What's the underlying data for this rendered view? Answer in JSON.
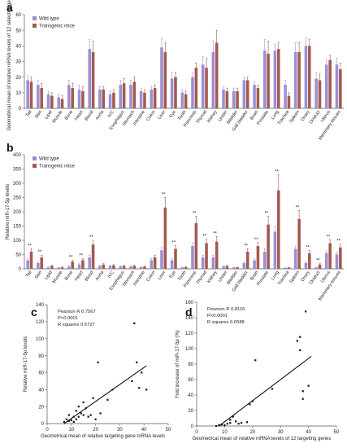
{
  "chart_data": [
    {
      "panel": "a",
      "type": "bar",
      "ylabel": "Geometrical  mean of relative mRNA levels of 12 selected genes",
      "ylim": [
        0,
        60
      ],
      "yticks": [
        0,
        10,
        20,
        30,
        40,
        50,
        60
      ],
      "grid": false,
      "legend": "top-left",
      "colors": {
        "Wild type": "#9b8fd6",
        "Transgenic mice": "#a35a4e"
      },
      "categories": [
        "Tail",
        "Skin",
        "Lipid",
        "Muscle",
        "Bone",
        "Heart",
        "Blood",
        "Aorta",
        "IVC",
        "Esophagus",
        "Stomach",
        "Intestine",
        "Colon",
        "Liver",
        "Eye",
        "Tooth",
        "Pancreas",
        "Thyroid",
        "Kidney",
        "Ureter",
        "Bladder",
        "Gall bladder",
        "Brain",
        "Prostate",
        "Lung",
        "Trachea",
        "Spleen",
        "Ovary",
        "Oviduct",
        "Uterus",
        "Mammary tissues"
      ],
      "series": [
        {
          "name": "Wild type",
          "values": [
            18,
            15,
            9,
            7,
            15,
            12,
            38,
            12,
            9,
            15,
            15,
            11,
            12,
            39,
            19,
            10,
            20,
            28,
            36,
            12,
            11,
            18,
            15,
            37,
            37,
            15,
            36,
            40,
            19,
            28,
            28
          ],
          "errors": [
            3,
            3,
            2,
            2,
            3,
            3,
            6,
            2,
            2,
            3,
            3,
            2,
            2,
            6,
            4,
            2,
            3,
            5,
            7,
            2,
            2,
            2,
            2,
            7,
            4,
            3,
            6,
            5,
            4,
            3,
            4
          ]
        },
        {
          "name": "Transgenic mice",
          "values": [
            17,
            13,
            8,
            6,
            13,
            11,
            36,
            12,
            10,
            16,
            17,
            10,
            13,
            36,
            20,
            9,
            26,
            26,
            42,
            11,
            11,
            18,
            13,
            35,
            38,
            8,
            36,
            40,
            18,
            31,
            25
          ],
          "errors": [
            3,
            3,
            2,
            2,
            3,
            3,
            7,
            2,
            2,
            3,
            3,
            2,
            2,
            6,
            3,
            2,
            3,
            6,
            8,
            2,
            2,
            2,
            2,
            8,
            4,
            2,
            6,
            4,
            4,
            3,
            4
          ]
        }
      ]
    },
    {
      "panel": "b",
      "type": "bar",
      "ylabel": "Relative miR-17-5p levels",
      "ylim": [
        0,
        400
      ],
      "yticks": [
        0,
        50,
        100,
        150,
        200,
        250,
        300,
        350,
        400
      ],
      "grid": false,
      "legend": "top-left",
      "significance_marker": "**",
      "categories": [
        "Tail",
        "Skin",
        "Lipid",
        "Muscle",
        "Bone",
        "Heart",
        "Blood",
        "Aorta",
        "IVC",
        "Esophagus",
        "Stomach",
        "Intestine",
        "Colon",
        "Liver",
        "Eye",
        "Tooth",
        "Pancreas",
        "Thyroid",
        "Kidney",
        "Ureter",
        "Bladder",
        "Gall bladder",
        "Brain",
        "Prostate",
        "Lung",
        "Trachea",
        "Spleen",
        "Ovary",
        "Oviduct",
        "Uterus",
        "Mammary tissues"
      ],
      "significant": [
        true,
        true,
        false,
        false,
        true,
        true,
        true,
        false,
        false,
        false,
        false,
        false,
        false,
        true,
        true,
        false,
        true,
        true,
        true,
        false,
        false,
        true,
        true,
        true,
        true,
        false,
        true,
        true,
        true,
        true,
        true
      ],
      "series": [
        {
          "name": "Wild type",
          "values": [
            30,
            20,
            5,
            4,
            8,
            15,
            40,
            10,
            10,
            8,
            8,
            6,
            30,
            65,
            30,
            5,
            80,
            40,
            40,
            8,
            5,
            20,
            30,
            60,
            130,
            3,
            70,
            20,
            5,
            55,
            50
          ],
          "errors": [
            5,
            5,
            2,
            1,
            2,
            3,
            8,
            2,
            2,
            2,
            2,
            1,
            6,
            10,
            5,
            1,
            10,
            8,
            8,
            2,
            1,
            4,
            5,
            10,
            20,
            1,
            10,
            4,
            1,
            8,
            8
          ]
        },
        {
          "name": "Transgenic mice",
          "values": [
            60,
            40,
            10,
            5,
            25,
            30,
            85,
            15,
            12,
            10,
            10,
            8,
            40,
            215,
            70,
            6,
            160,
            90,
            95,
            10,
            5,
            60,
            80,
            155,
            275,
            4,
            175,
            55,
            15,
            90,
            75
          ],
          "errors": [
            10,
            8,
            3,
            2,
            5,
            6,
            15,
            3,
            3,
            2,
            2,
            2,
            8,
            35,
            12,
            1,
            25,
            15,
            18,
            2,
            1,
            10,
            12,
            30,
            55,
            1,
            30,
            10,
            3,
            12,
            12
          ]
        }
      ]
    },
    {
      "panel": "c",
      "type": "scatter",
      "xlabel": "Geometrical mean of relative targeting gene mRNA levels",
      "ylabel": "Relative miR-17-5p levels",
      "xlim": [
        0,
        50
      ],
      "ylim": [
        0,
        140
      ],
      "xticks": [
        0,
        10,
        20,
        30,
        40,
        50
      ],
      "yticks": [
        0,
        20,
        40,
        60,
        80,
        100,
        120,
        140
      ],
      "annotations": [
        "Pearson R 0.7567",
        "P<0.0001",
        "R squares 0.5727"
      ],
      "fit_line": [
        [
          7,
          0
        ],
        [
          41,
          68
        ]
      ],
      "points": [
        [
          7,
          2
        ],
        [
          8,
          5
        ],
        [
          9,
          3
        ],
        [
          9,
          10
        ],
        [
          10,
          4
        ],
        [
          11,
          2
        ],
        [
          11,
          8
        ],
        [
          12,
          15
        ],
        [
          12,
          5
        ],
        [
          13,
          20
        ],
        [
          13,
          8
        ],
        [
          14,
          12
        ],
        [
          15,
          10
        ],
        [
          15,
          25
        ],
        [
          16,
          18
        ],
        [
          17,
          8
        ],
        [
          18,
          10
        ],
        [
          19,
          30
        ],
        [
          20,
          5
        ],
        [
          21,
          72
        ],
        [
          22,
          12
        ],
        [
          25,
          28
        ],
        [
          27,
          40
        ],
        [
          35,
          50
        ],
        [
          36,
          118
        ],
        [
          37,
          72
        ],
        [
          38,
          42
        ],
        [
          39,
          60
        ],
        [
          41,
          40
        ]
      ]
    },
    {
      "panel": "d",
      "type": "scatter",
      "xlabel": "Geometrical  mean of relative mRNA levels of 12 targeting genes",
      "ylabel": "Fold increase of miR-17-5p (%)",
      "xlim": [
        0,
        50
      ],
      "ylim": [
        0,
        160
      ],
      "xticks": [
        0,
        10,
        20,
        30,
        40,
        50
      ],
      "yticks": [
        0,
        20,
        40,
        60,
        80,
        100,
        120,
        140,
        160
      ],
      "annotations": [
        "Pearson R 0.8116",
        "P<0.0001",
        "R squares 0.6588"
      ],
      "fit_line": [
        [
          8,
          0
        ],
        [
          41,
          90
        ]
      ],
      "points": [
        [
          7,
          0
        ],
        [
          8,
          1
        ],
        [
          9,
          2
        ],
        [
          10,
          1
        ],
        [
          11,
          3
        ],
        [
          12,
          4
        ],
        [
          12,
          8
        ],
        [
          13,
          12
        ],
        [
          14,
          6
        ],
        [
          15,
          3
        ],
        [
          16,
          4
        ],
        [
          18,
          5
        ],
        [
          19,
          28
        ],
        [
          20,
          32
        ],
        [
          21,
          85
        ],
        [
          27,
          48
        ],
        [
          36,
          110
        ],
        [
          37,
          98
        ],
        [
          37,
          115
        ],
        [
          38,
          45
        ],
        [
          38,
          35
        ],
        [
          39,
          148
        ],
        [
          40,
          52
        ]
      ]
    }
  ],
  "panel_labels": [
    "a",
    "b",
    "c",
    "d"
  ],
  "legend_labels": [
    "Wild type",
    "Transgenic mice"
  ]
}
